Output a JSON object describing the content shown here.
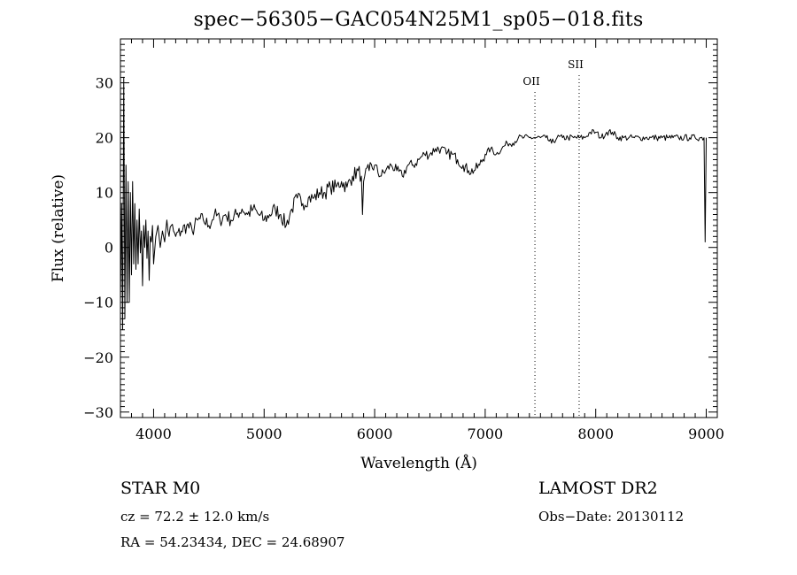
{
  "chart_data": {
    "type": "line",
    "title": "spec−56305−GAC054N25M1_sp05−018.fits",
    "xlabel": "Wavelength (Å)",
    "ylabel": "Flux (relative)",
    "xlim": [
      3700,
      9100
    ],
    "ylim": [
      -31,
      38
    ],
    "x_ticks": [
      4000,
      5000,
      6000,
      7000,
      8000,
      9000
    ],
    "x_tick_labels": [
      "4000",
      "5000",
      "6000",
      "7000",
      "8000",
      "9000"
    ],
    "y_ticks": [
      -30,
      -20,
      -10,
      0,
      10,
      20,
      30
    ],
    "y_tick_labels": [
      "−30",
      "−20",
      "−10",
      "0",
      "10",
      "20",
      "30"
    ],
    "grid": false,
    "legend": "none",
    "line_color": "#000000",
    "series": [
      {
        "x": [
          3700,
          3710,
          3720,
          3730,
          3740,
          3750,
          3760,
          3770,
          3780,
          3790,
          3800,
          3810,
          3820,
          3830,
          3840,
          3850,
          3860,
          3870,
          3880,
          3890,
          3900,
          3910,
          3920,
          3930,
          3940,
          3950,
          3960,
          3970,
          3980,
          3990,
          4000,
          4020,
          4040,
          4060,
          4080,
          4100,
          4120,
          4140,
          4160,
          4180,
          4200,
          4250,
          4300,
          4350,
          4400,
          4450,
          4500,
          4550,
          4600,
          4650,
          4700,
          4750,
          4800,
          4850,
          4900,
          4950,
          5000,
          5050,
          5100,
          5150,
          5200,
          5250,
          5300,
          5350,
          5400,
          5450,
          5500,
          5550,
          5600,
          5650,
          5700,
          5750,
          5800,
          5850,
          5880,
          5890,
          5900,
          5910,
          5950,
          6000,
          6050,
          6100,
          6150,
          6200,
          6250,
          6300,
          6350,
          6400,
          6450,
          6500,
          6550,
          6600,
          6650,
          6700,
          6750,
          6800,
          6850,
          6900,
          6950,
          7000,
          7050,
          7100,
          7150,
          7200,
          7250,
          7300,
          7350,
          7400,
          7450,
          7500,
          7550,
          7600,
          7650,
          7700,
          7750,
          7800,
          7850,
          7900,
          7950,
          8000,
          8050,
          8100,
          8150,
          8200,
          8250,
          8300,
          8350,
          8400,
          8450,
          8500,
          8550,
          8600,
          8650,
          8700,
          8750,
          8800,
          8850,
          8900,
          8950,
          8980,
          8990,
          9000
        ],
        "y": [
          -10,
          8,
          -15,
          31,
          -13,
          15,
          -10,
          12,
          -10,
          10,
          -5,
          12,
          -3,
          8,
          -4,
          5,
          -3,
          7,
          -1,
          3,
          -7,
          4,
          0,
          5,
          -2,
          3,
          -6,
          2,
          1,
          4,
          -3,
          2,
          4,
          0,
          3,
          1,
          5,
          2,
          4,
          3,
          2,
          3,
          4,
          3,
          5,
          5,
          4,
          6,
          5,
          6,
          5,
          6,
          7,
          6,
          7,
          6,
          5,
          6,
          7,
          6,
          4,
          7,
          9,
          8,
          9,
          9,
          10,
          10,
          11,
          11,
          12,
          11,
          13,
          14,
          13,
          6,
          12,
          13,
          14,
          15,
          13,
          14,
          15,
          14,
          13,
          15,
          15,
          16,
          17,
          17,
          18,
          18,
          17,
          17,
          16,
          15,
          14,
          14,
          15,
          17,
          18,
          17,
          18,
          19,
          19,
          20,
          20,
          20,
          20,
          20,
          20,
          19,
          20,
          20,
          20,
          20,
          20,
          20,
          21,
          21,
          20,
          21,
          21,
          20,
          20,
          20,
          20,
          20,
          20,
          20,
          20,
          20,
          20,
          20,
          20,
          20,
          20,
          20,
          20,
          20,
          1,
          20
        ]
      }
    ],
    "annotations": [
      {
        "label": "OII",
        "x": 7450
      },
      {
        "label": "SII",
        "x": 7850
      }
    ]
  },
  "info": {
    "class_line": "STAR    M0",
    "cz_line": "cz = 72.2 ± 12.0 km/s",
    "radec_line": "RA =  54.23434, DEC =  24.68907",
    "survey_line": "LAMOST DR2",
    "obsdate_line": "Obs−Date: 20130112"
  }
}
